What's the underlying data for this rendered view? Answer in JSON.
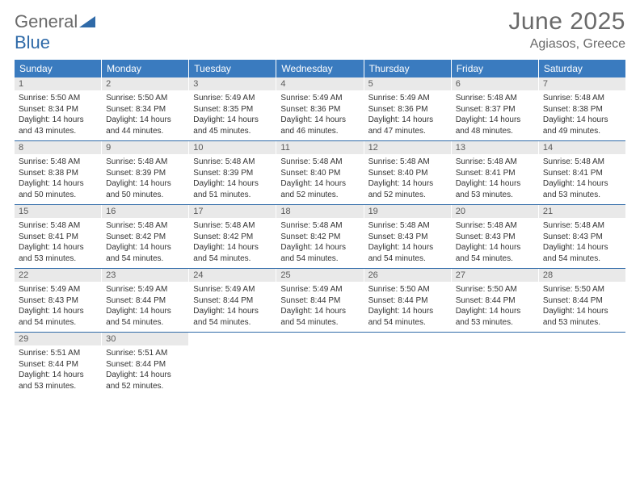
{
  "logo": {
    "general": "General",
    "blue": "Blue"
  },
  "title": "June 2025",
  "location": "Agiasos, Greece",
  "colors": {
    "header_bg": "#3a7bbf",
    "header_text": "#ffffff",
    "divider": "#2f6aa8",
    "daynum_bg": "#e9e9e9",
    "daynum_text": "#5a5a5a",
    "body_text": "#333333",
    "title_text": "#6a6a6a",
    "logo_gray": "#6a6a6a",
    "logo_blue": "#2f6aa8",
    "page_bg": "#ffffff"
  },
  "fonts": {
    "title_size_pt": 22,
    "location_size_pt": 12,
    "dow_size_pt": 9,
    "daynum_size_pt": 8,
    "body_size_pt": 7
  },
  "dow": [
    "Sunday",
    "Monday",
    "Tuesday",
    "Wednesday",
    "Thursday",
    "Friday",
    "Saturday"
  ],
  "weeks": [
    [
      {
        "n": "1",
        "sr": "Sunrise: 5:50 AM",
        "ss": "Sunset: 8:34 PM",
        "d1": "Daylight: 14 hours",
        "d2": "and 43 minutes."
      },
      {
        "n": "2",
        "sr": "Sunrise: 5:50 AM",
        "ss": "Sunset: 8:34 PM",
        "d1": "Daylight: 14 hours",
        "d2": "and 44 minutes."
      },
      {
        "n": "3",
        "sr": "Sunrise: 5:49 AM",
        "ss": "Sunset: 8:35 PM",
        "d1": "Daylight: 14 hours",
        "d2": "and 45 minutes."
      },
      {
        "n": "4",
        "sr": "Sunrise: 5:49 AM",
        "ss": "Sunset: 8:36 PM",
        "d1": "Daylight: 14 hours",
        "d2": "and 46 minutes."
      },
      {
        "n": "5",
        "sr": "Sunrise: 5:49 AM",
        "ss": "Sunset: 8:36 PM",
        "d1": "Daylight: 14 hours",
        "d2": "and 47 minutes."
      },
      {
        "n": "6",
        "sr": "Sunrise: 5:48 AM",
        "ss": "Sunset: 8:37 PM",
        "d1": "Daylight: 14 hours",
        "d2": "and 48 minutes."
      },
      {
        "n": "7",
        "sr": "Sunrise: 5:48 AM",
        "ss": "Sunset: 8:38 PM",
        "d1": "Daylight: 14 hours",
        "d2": "and 49 minutes."
      }
    ],
    [
      {
        "n": "8",
        "sr": "Sunrise: 5:48 AM",
        "ss": "Sunset: 8:38 PM",
        "d1": "Daylight: 14 hours",
        "d2": "and 50 minutes."
      },
      {
        "n": "9",
        "sr": "Sunrise: 5:48 AM",
        "ss": "Sunset: 8:39 PM",
        "d1": "Daylight: 14 hours",
        "d2": "and 50 minutes."
      },
      {
        "n": "10",
        "sr": "Sunrise: 5:48 AM",
        "ss": "Sunset: 8:39 PM",
        "d1": "Daylight: 14 hours",
        "d2": "and 51 minutes."
      },
      {
        "n": "11",
        "sr": "Sunrise: 5:48 AM",
        "ss": "Sunset: 8:40 PM",
        "d1": "Daylight: 14 hours",
        "d2": "and 52 minutes."
      },
      {
        "n": "12",
        "sr": "Sunrise: 5:48 AM",
        "ss": "Sunset: 8:40 PM",
        "d1": "Daylight: 14 hours",
        "d2": "and 52 minutes."
      },
      {
        "n": "13",
        "sr": "Sunrise: 5:48 AM",
        "ss": "Sunset: 8:41 PM",
        "d1": "Daylight: 14 hours",
        "d2": "and 53 minutes."
      },
      {
        "n": "14",
        "sr": "Sunrise: 5:48 AM",
        "ss": "Sunset: 8:41 PM",
        "d1": "Daylight: 14 hours",
        "d2": "and 53 minutes."
      }
    ],
    [
      {
        "n": "15",
        "sr": "Sunrise: 5:48 AM",
        "ss": "Sunset: 8:41 PM",
        "d1": "Daylight: 14 hours",
        "d2": "and 53 minutes."
      },
      {
        "n": "16",
        "sr": "Sunrise: 5:48 AM",
        "ss": "Sunset: 8:42 PM",
        "d1": "Daylight: 14 hours",
        "d2": "and 54 minutes."
      },
      {
        "n": "17",
        "sr": "Sunrise: 5:48 AM",
        "ss": "Sunset: 8:42 PM",
        "d1": "Daylight: 14 hours",
        "d2": "and 54 minutes."
      },
      {
        "n": "18",
        "sr": "Sunrise: 5:48 AM",
        "ss": "Sunset: 8:42 PM",
        "d1": "Daylight: 14 hours",
        "d2": "and 54 minutes."
      },
      {
        "n": "19",
        "sr": "Sunrise: 5:48 AM",
        "ss": "Sunset: 8:43 PM",
        "d1": "Daylight: 14 hours",
        "d2": "and 54 minutes."
      },
      {
        "n": "20",
        "sr": "Sunrise: 5:48 AM",
        "ss": "Sunset: 8:43 PM",
        "d1": "Daylight: 14 hours",
        "d2": "and 54 minutes."
      },
      {
        "n": "21",
        "sr": "Sunrise: 5:48 AM",
        "ss": "Sunset: 8:43 PM",
        "d1": "Daylight: 14 hours",
        "d2": "and 54 minutes."
      }
    ],
    [
      {
        "n": "22",
        "sr": "Sunrise: 5:49 AM",
        "ss": "Sunset: 8:43 PM",
        "d1": "Daylight: 14 hours",
        "d2": "and 54 minutes."
      },
      {
        "n": "23",
        "sr": "Sunrise: 5:49 AM",
        "ss": "Sunset: 8:44 PM",
        "d1": "Daylight: 14 hours",
        "d2": "and 54 minutes."
      },
      {
        "n": "24",
        "sr": "Sunrise: 5:49 AM",
        "ss": "Sunset: 8:44 PM",
        "d1": "Daylight: 14 hours",
        "d2": "and 54 minutes."
      },
      {
        "n": "25",
        "sr": "Sunrise: 5:49 AM",
        "ss": "Sunset: 8:44 PM",
        "d1": "Daylight: 14 hours",
        "d2": "and 54 minutes."
      },
      {
        "n": "26",
        "sr": "Sunrise: 5:50 AM",
        "ss": "Sunset: 8:44 PM",
        "d1": "Daylight: 14 hours",
        "d2": "and 54 minutes."
      },
      {
        "n": "27",
        "sr": "Sunrise: 5:50 AM",
        "ss": "Sunset: 8:44 PM",
        "d1": "Daylight: 14 hours",
        "d2": "and 53 minutes."
      },
      {
        "n": "28",
        "sr": "Sunrise: 5:50 AM",
        "ss": "Sunset: 8:44 PM",
        "d1": "Daylight: 14 hours",
        "d2": "and 53 minutes."
      }
    ],
    [
      {
        "n": "29",
        "sr": "Sunrise: 5:51 AM",
        "ss": "Sunset: 8:44 PM",
        "d1": "Daylight: 14 hours",
        "d2": "and 53 minutes."
      },
      {
        "n": "30",
        "sr": "Sunrise: 5:51 AM",
        "ss": "Sunset: 8:44 PM",
        "d1": "Daylight: 14 hours",
        "d2": "and 52 minutes."
      },
      {
        "empty": true
      },
      {
        "empty": true
      },
      {
        "empty": true
      },
      {
        "empty": true
      },
      {
        "empty": true
      }
    ]
  ]
}
